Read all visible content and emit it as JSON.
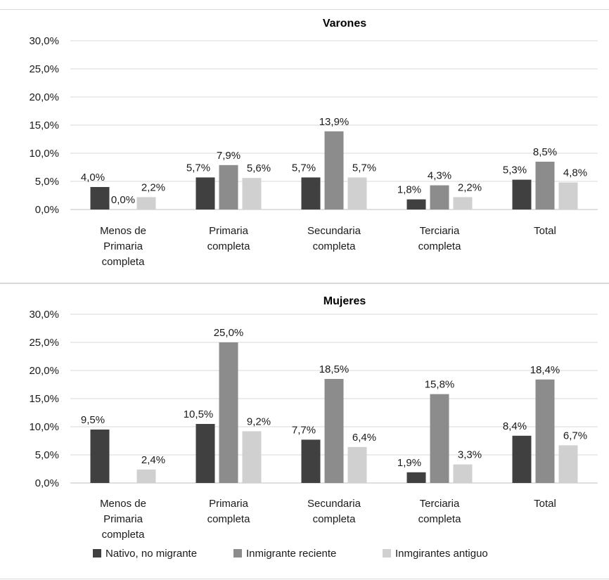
{
  "chart_data": [
    {
      "type": "bar",
      "title": "Varones",
      "categories": [
        [
          "Menos de",
          "Primaria",
          "completa"
        ],
        [
          "Primaria",
          "completa"
        ],
        [
          "Secundaria",
          "completa"
        ],
        [
          "Terciaria",
          "completa"
        ],
        [
          "Total"
        ]
      ],
      "series": [
        {
          "name": "Nativo, no migrante",
          "values": [
            4.0,
            5.7,
            5.7,
            1.8,
            5.3
          ],
          "labels": [
            "4,0%",
            "5,7%",
            "5,7%",
            "1,8%",
            "5,3%"
          ]
        },
        {
          "name": "Inmigrante reciente",
          "values": [
            0.0,
            7.9,
            13.9,
            4.3,
            8.5
          ],
          "labels": [
            "0,0%",
            "7,9%",
            "13,9%",
            "4,3%",
            "8,5%"
          ]
        },
        {
          "name": "Inmgirantes antiguo",
          "values": [
            2.2,
            5.6,
            5.7,
            2.2,
            4.8
          ],
          "labels": [
            "2,2%",
            "5,6%",
            "5,7%",
            "2,2%",
            "4,8%"
          ]
        }
      ],
      "yticks": [
        "0,0%",
        "5,0%",
        "10,0%",
        "15,0%",
        "20,0%",
        "25,0%",
        "30,0%"
      ],
      "ylim": [
        0,
        30
      ],
      "grid": true
    },
    {
      "type": "bar",
      "title": "Mujeres",
      "categories": [
        [
          "Menos de",
          "Primaria",
          "completa"
        ],
        [
          "Primaria",
          "completa"
        ],
        [
          "Secundaria",
          "completa"
        ],
        [
          "Terciaria",
          "completa"
        ],
        [
          "Total"
        ]
      ],
      "series": [
        {
          "name": "Nativo, no migrante",
          "values": [
            9.5,
            10.5,
            7.7,
            1.9,
            8.4
          ],
          "labels": [
            "9,5%",
            "10,5%",
            "7,7%",
            "1,9%",
            "8,4%"
          ]
        },
        {
          "name": "Inmigrante reciente",
          "values": [
            0,
            25.0,
            18.5,
            15.8,
            18.4
          ],
          "labels": [
            "",
            "25,0%",
            "18,5%",
            "15,8%",
            "18,4%"
          ]
        },
        {
          "name": "Inmgirantes antiguo",
          "values": [
            2.4,
            9.2,
            6.4,
            3.3,
            6.7
          ],
          "labels": [
            "2,4%",
            "9,2%",
            "6,4%",
            "3,3%",
            "6,7%"
          ]
        }
      ],
      "yticks": [
        "0,0%",
        "5,0%",
        "10,0%",
        "15,0%",
        "20,0%",
        "25,0%",
        "30,0%"
      ],
      "ylim": [
        0,
        30
      ],
      "grid": true,
      "legend_position": "bottom"
    }
  ],
  "colors": {
    "series": [
      "#404040",
      "#8c8c8c",
      "#d0d0d0"
    ],
    "grid": "#d9d9d9"
  }
}
